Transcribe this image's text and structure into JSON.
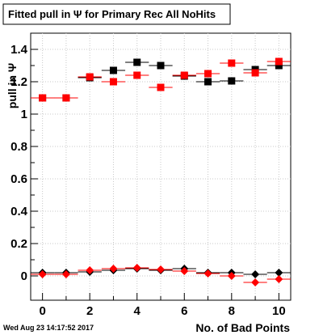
{
  "chart_data": {
    "type": "scatter",
    "title": "Fitted pull in Ψ  for Primary Rec All NoHits",
    "xlabel": "No. of Bad Points",
    "ylabel": "pull in Ψ",
    "timestamp": "Wed Aug 23 14:17:52 2017",
    "xlim": [
      -0.5,
      10.5
    ],
    "ylim": [
      -0.15,
      1.5
    ],
    "grid": true,
    "legend": "none",
    "x_ticks": [
      "0",
      "2",
      "4",
      "6",
      "8",
      "10"
    ],
    "y_ticks": [
      "0",
      "0.2",
      "0.4",
      "0.6",
      "0.8",
      "1",
      "1.2",
      "1.4"
    ],
    "colors": {
      "black": "#000000",
      "red": "#ff0000",
      "grid": "#c8c8c8"
    },
    "series": [
      {
        "color": "#000000",
        "marker": "square",
        "x": [
          0,
          1,
          2,
          3,
          4,
          5,
          6,
          7,
          8,
          9,
          10
        ],
        "y": [
          1.1,
          1.1,
          1.225,
          1.27,
          1.32,
          1.3,
          1.235,
          1.2,
          1.205,
          1.275,
          1.3
        ],
        "err": [
          0.01,
          0.01,
          0.01,
          0.015,
          0.015,
          0.015,
          0.015,
          0.02,
          0.02,
          0.02,
          0.02
        ]
      },
      {
        "color": "#ff0000",
        "marker": "square",
        "x": [
          0,
          1,
          2,
          3,
          4,
          5,
          6,
          7,
          8,
          9,
          10
        ],
        "y": [
          1.1,
          1.1,
          1.23,
          1.2,
          1.24,
          1.165,
          1.24,
          1.25,
          1.315,
          1.255,
          1.325
        ],
        "err": [
          0.01,
          0.01,
          0.01,
          0.015,
          0.015,
          0.015,
          0.015,
          0.015,
          0.02,
          0.02,
          0.02
        ]
      },
      {
        "color": "#000000",
        "marker": "diamond",
        "x": [
          0,
          1,
          2,
          3,
          4,
          5,
          6,
          7,
          8,
          9,
          10
        ],
        "y": [
          0.02,
          0.02,
          0.025,
          0.035,
          0.045,
          0.035,
          0.045,
          0.02,
          0.02,
          0.01,
          0.02
        ],
        "err": [
          0.005,
          0.005,
          0.005,
          0.008,
          0.008,
          0.008,
          0.008,
          0.01,
          0.01,
          0.01,
          0.01
        ]
      },
      {
        "color": "#ff0000",
        "marker": "diamond",
        "x": [
          0,
          1,
          2,
          3,
          4,
          5,
          6,
          7,
          8,
          9,
          10
        ],
        "y": [
          0.01,
          0.01,
          0.035,
          0.045,
          0.05,
          0.04,
          0.03,
          0.015,
          0.0,
          -0.04,
          -0.02
        ],
        "err": [
          0.005,
          0.005,
          0.005,
          0.008,
          0.008,
          0.008,
          0.008,
          0.01,
          0.01,
          0.01,
          0.01
        ]
      }
    ]
  }
}
